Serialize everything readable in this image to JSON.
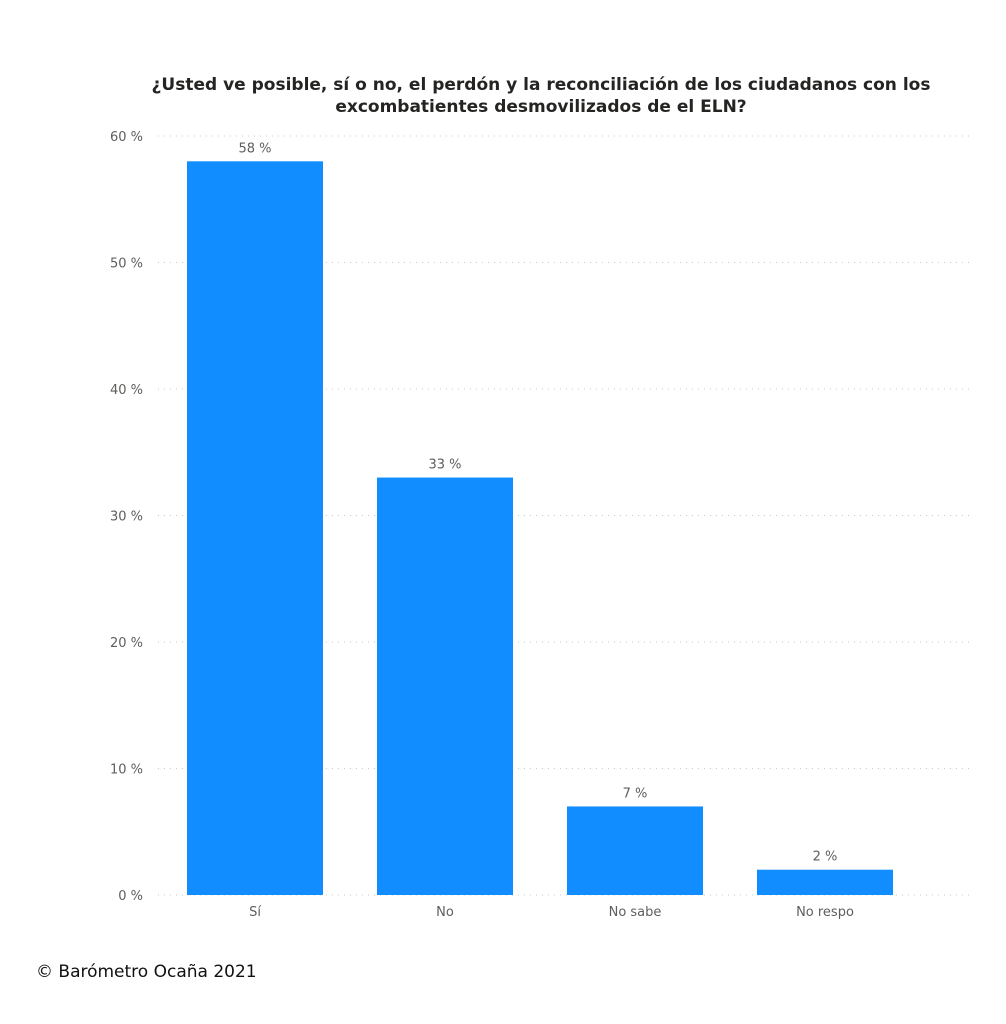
{
  "chart_data": {
    "type": "bar",
    "title_lines": [
      "¿Usted ve posible, sí o no, el perdón y la reconciliación de los ciudadanos con los",
      "excombatientes desmovilizados de el ELN?"
    ],
    "categories": [
      "Sí",
      "No",
      "No sabe",
      "No respo"
    ],
    "values": [
      58,
      33,
      7,
      2
    ],
    "data_labels": [
      "58 %",
      "33 %",
      "7 %",
      "2 %"
    ],
    "y_ticks": [
      {
        "value": 0,
        "label": "0 %"
      },
      {
        "value": 10,
        "label": "10 %"
      },
      {
        "value": 20,
        "label": "20 %"
      },
      {
        "value": 30,
        "label": "30 %"
      },
      {
        "value": 40,
        "label": "40 %"
      },
      {
        "value": 50,
        "label": "50 %"
      },
      {
        "value": 60,
        "label": "60 %"
      }
    ],
    "ylim": [
      0,
      60
    ],
    "grid": true,
    "bar_color": "#118dff",
    "grid_color": "#c8c8c8"
  },
  "credit": "© Barómetro Ocaña 2021"
}
